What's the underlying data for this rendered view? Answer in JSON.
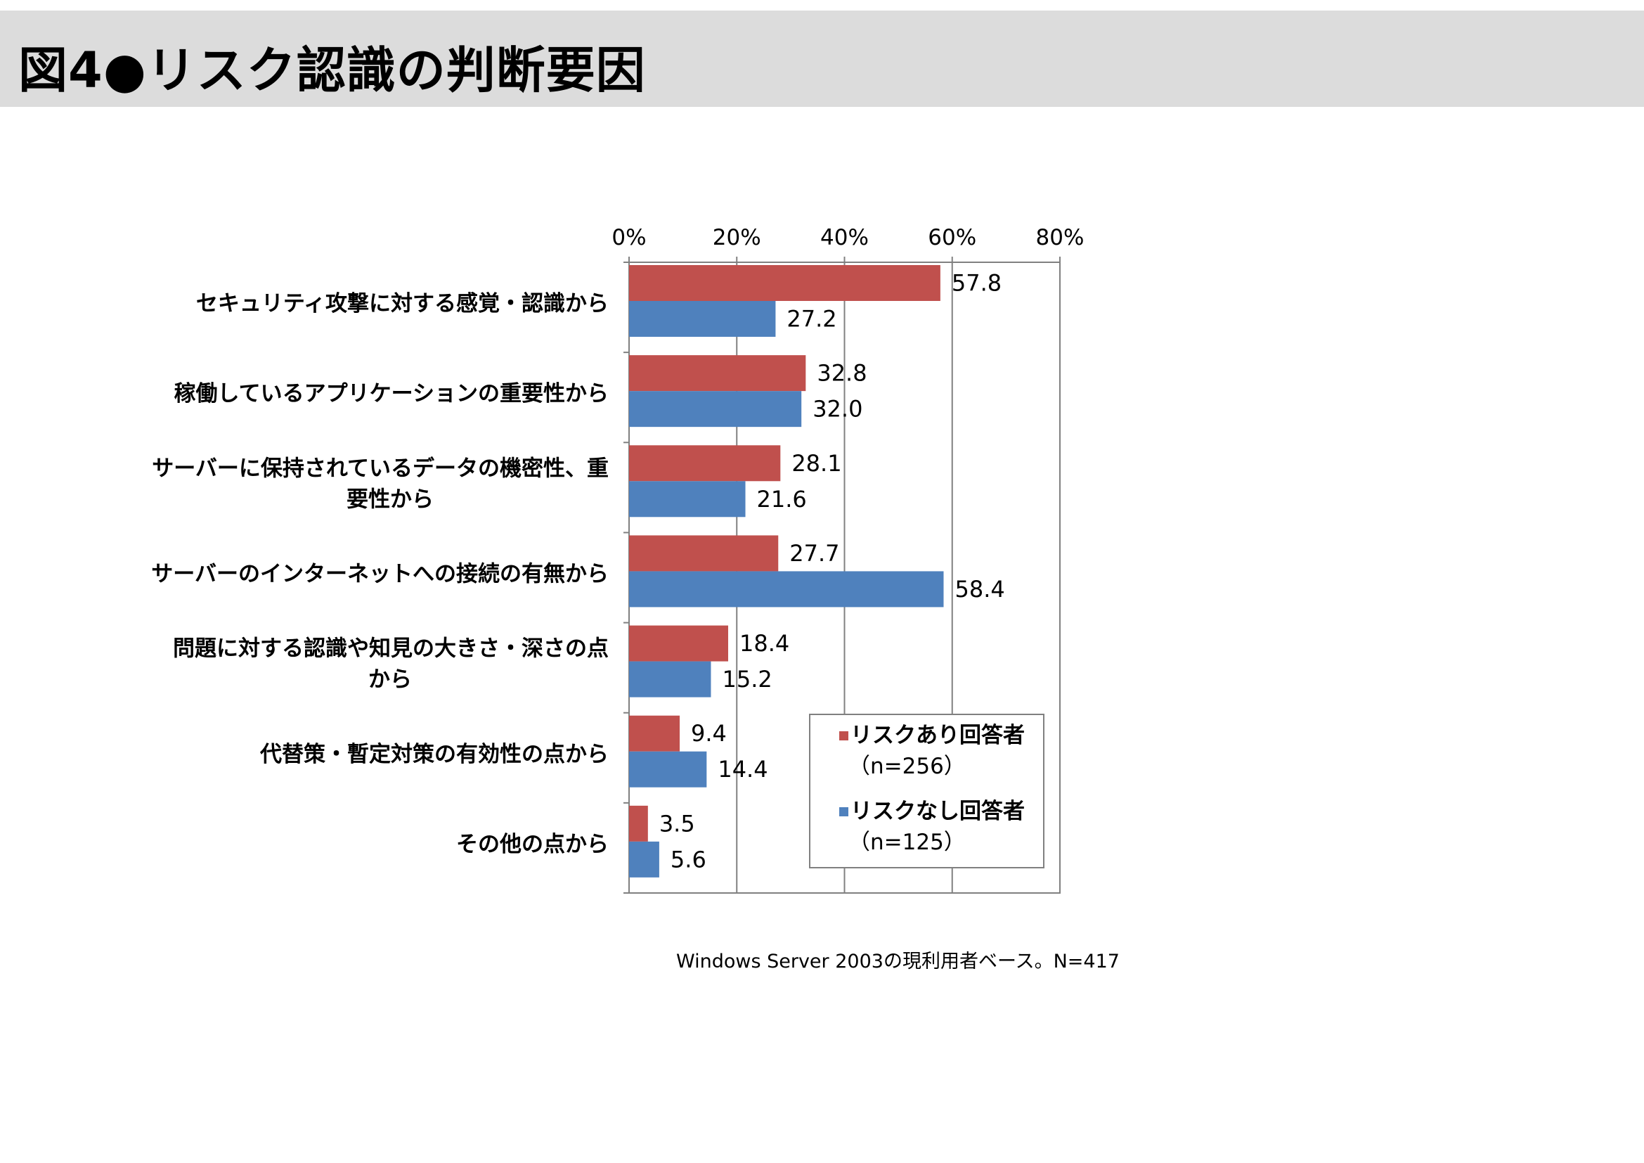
{
  "page": {
    "title": "図4●リスク認識の判断要因",
    "footnote": "Windows Server 2003の現利用者ベース。N=417"
  },
  "colors": {
    "series_with_risk": "#c0504d",
    "series_without_risk": "#4f81bd",
    "title_band": "#dcdcdc",
    "gridline": "#808080"
  },
  "chart_data": {
    "type": "bar",
    "orientation": "horizontal",
    "categories": [
      "セキュリティ攻撃に対する感覚・認識から",
      "稼働しているアプリケーションの重要性から",
      "サーバーに保持されているデータの機密性、重要性から",
      "サーバーのインターネットへの接続の有無から",
      "問題に対する認識や知見の大きさ・深さの点から",
      "代替策・暫定対策の有効性の点から",
      "その他の点から"
    ],
    "category_lines": [
      [
        "セキュリティ攻撃に対する感覚・認識から"
      ],
      [
        "稼働しているアプリケーションの重要性から"
      ],
      [
        "サーバーに保持されているデータの機密性、重",
        "要性から"
      ],
      [
        "サーバーのインターネットへの接続の有無から"
      ],
      [
        "問題に対する認識や知見の大きさ・深さの点",
        "から"
      ],
      [
        "代替策・暫定対策の有効性の点から"
      ],
      [
        "その他の点から"
      ]
    ],
    "series": [
      {
        "name": "リスクあり回答者",
        "legend_lines": [
          "リスクあり回答者",
          "（n=256）"
        ],
        "values": [
          57.8,
          32.8,
          28.1,
          27.7,
          18.4,
          9.4,
          3.5
        ],
        "labels": [
          "57.8",
          "32.8",
          "28.1",
          "27.7",
          "18.4",
          "9.4",
          "3.5"
        ]
      },
      {
        "name": "リスクなし回答者",
        "legend_lines": [
          "リスクなし回答者",
          "（n=125）"
        ],
        "values": [
          27.2,
          32.0,
          21.6,
          58.4,
          15.2,
          14.4,
          5.6
        ],
        "labels": [
          "27.2",
          "32.0",
          "21.6",
          "58.4",
          "15.2",
          "14.4",
          "5.6"
        ]
      }
    ],
    "xlim": [
      0,
      80
    ],
    "xticks": [
      0,
      20,
      40,
      60,
      80
    ],
    "xtick_labels": [
      "0%",
      "20%",
      "40%",
      "60%",
      "80%"
    ],
    "axis_position": "top",
    "grid": true,
    "legend_position": "bottom-right"
  }
}
